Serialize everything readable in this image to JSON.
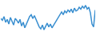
{
  "chart_data": {
    "type": "line",
    "color": "#3a8fd0",
    "tick_labels": false,
    "grid": false,
    "x": [
      0,
      1,
      2,
      3,
      4,
      5,
      6,
      7,
      8,
      9,
      10,
      11,
      12,
      13,
      14,
      15,
      16,
      17,
      18,
      19,
      20,
      21,
      22,
      23,
      24,
      25,
      26,
      27,
      28,
      29,
      30,
      31,
      32,
      33,
      34,
      35,
      36,
      37,
      38,
      39,
      40,
      41,
      42,
      43,
      44,
      45,
      46,
      47,
      48,
      49,
      50,
      51,
      52,
      53,
      54,
      55,
      56,
      57,
      58,
      59
    ],
    "values": [
      64,
      60,
      68,
      56,
      62,
      52,
      66,
      58,
      50,
      64,
      60,
      54,
      62,
      48,
      56,
      44,
      52,
      60,
      68,
      72,
      64,
      70,
      62,
      56,
      46,
      42,
      50,
      40,
      48,
      54,
      46,
      52,
      44,
      50,
      56,
      60,
      66,
      74,
      78,
      72,
      80,
      76,
      82,
      78,
      84,
      76,
      86,
      80,
      82,
      88,
      84,
      90,
      86,
      92,
      84,
      88,
      76,
      52,
      46,
      82
    ],
    "xlim": [
      0,
      59
    ],
    "ylim": [
      30,
      100
    ]
  }
}
